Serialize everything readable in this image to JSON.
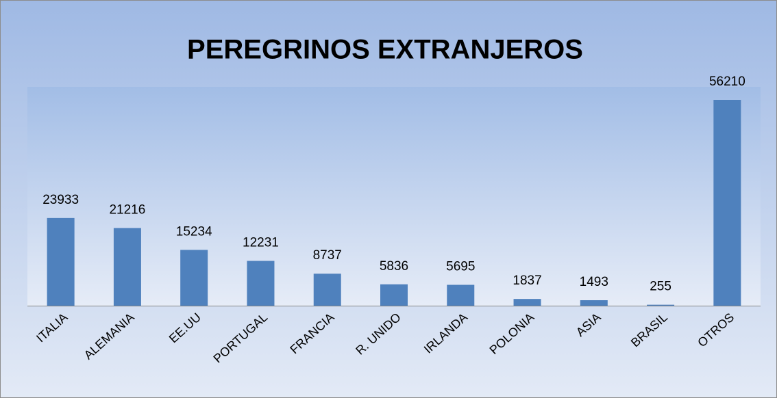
{
  "chart_data": {
    "type": "bar",
    "title": "PEREGRINOS EXTRANJEROS",
    "categories": [
      "ITALIA",
      "ALEMANIA",
      "EE.UU",
      "PORTUGAL",
      "FRANCIA",
      "R. UNIDO",
      "IRLANDA",
      "POLONIA",
      "ASIA",
      "BRASIL",
      "OTROS"
    ],
    "values": [
      23933,
      21216,
      15234,
      12231,
      8737,
      5836,
      5695,
      1837,
      1493,
      255,
      56210
    ],
    "color": "#4f81bd"
  }
}
